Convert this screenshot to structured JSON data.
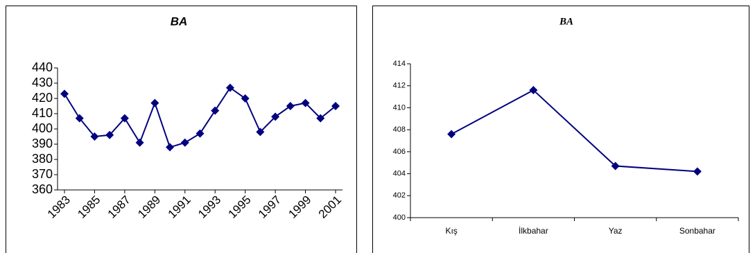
{
  "chart_data": [
    {
      "type": "line",
      "title": "BA",
      "categories": [
        "1983",
        null,
        "1985",
        null,
        "1987",
        null,
        "1989",
        null,
        "1991",
        null,
        "1993",
        null,
        "1995",
        null,
        "1997",
        null,
        "1999",
        null,
        "2001"
      ],
      "series": [
        {
          "name": "BA",
          "color": "#000080",
          "values": [
            423,
            407,
            395,
            396,
            407,
            391,
            417,
            388,
            391,
            397,
            412,
            427,
            420,
            398,
            408,
            415,
            417,
            407,
            415
          ]
        }
      ],
      "ylim": [
        360,
        440
      ],
      "yticks": [
        360,
        370,
        380,
        390,
        400,
        410,
        420,
        430,
        440
      ]
    },
    {
      "type": "line",
      "title": "BA",
      "categories": [
        "Kış",
        "İlkbahar",
        "Yaz",
        "Sonbahar"
      ],
      "series": [
        {
          "name": "BA",
          "color": "#000080",
          "values": [
            407.6,
            411.6,
            404.7,
            404.2
          ]
        }
      ],
      "ylim": [
        400,
        414
      ],
      "yticks": [
        400,
        402,
        404,
        406,
        408,
        410,
        412,
        414
      ]
    }
  ]
}
